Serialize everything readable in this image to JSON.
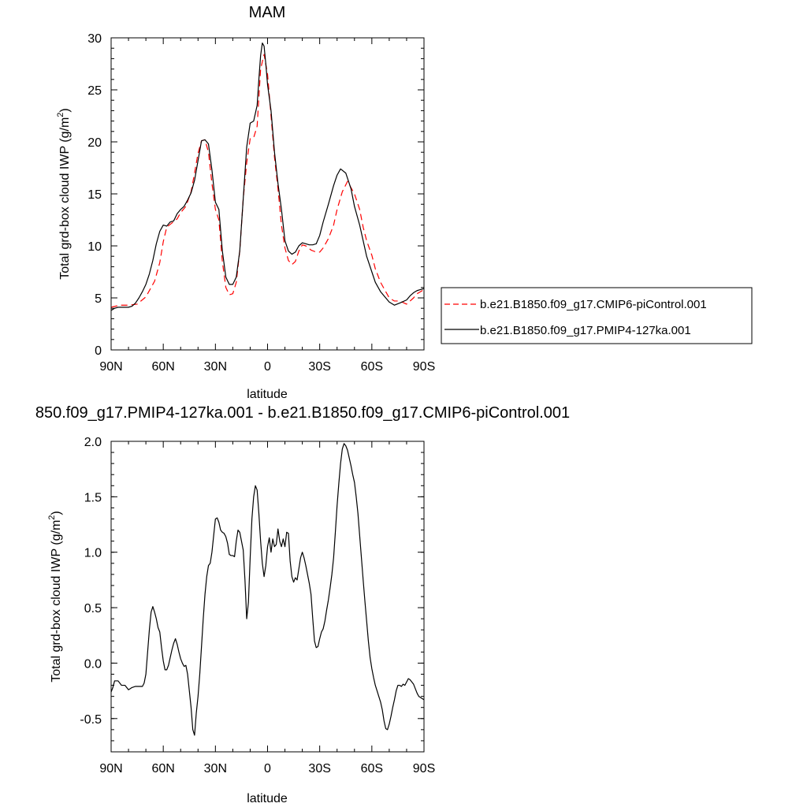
{
  "chart_data": [
    {
      "type": "line",
      "title": "MAM",
      "xlabel": "latitude",
      "ylabel": "Total grd-box cloud IWP (g/m",
      "ylabel_sup": "2",
      "ylabel_close": ")",
      "xlim": [
        90,
        -90
      ],
      "ylim": [
        0,
        30
      ],
      "x_ticks": [
        90,
        60,
        30,
        0,
        -30,
        -60,
        -90
      ],
      "x_tick_labels": [
        "90N",
        "60N",
        "30N",
        "0",
        "30S",
        "60S",
        "90S"
      ],
      "y_ticks": [
        0,
        5,
        10,
        15,
        20,
        25,
        30
      ],
      "y_tick_labels": [
        "0",
        "5",
        "10",
        "15",
        "20",
        "25",
        "30"
      ],
      "legend_position": "right",
      "series": [
        {
          "name": "b.e21.B1850.f09_g17.CMIP6-piControl.001",
          "color": "#ff0000",
          "dash": "dashed",
          "x": [
            90,
            85,
            80,
            75,
            70,
            65,
            62,
            60,
            58,
            55,
            52,
            50,
            47,
            44,
            42,
            40,
            38,
            36,
            34,
            32,
            30,
            28,
            26,
            24,
            22,
            20,
            18,
            16,
            14,
            12,
            10,
            8,
            6,
            4,
            2,
            0,
            -2,
            -4,
            -6,
            -8,
            -10,
            -12,
            -14,
            -16,
            -18,
            -20,
            -22,
            -25,
            -28,
            -30,
            -32,
            -35,
            -38,
            -40,
            -43,
            -46,
            -50,
            -53,
            -55,
            -57,
            -60,
            -62,
            -65,
            -68,
            -70,
            -73,
            -76,
            -80,
            -82,
            -84,
            -86,
            -88,
            -90
          ],
          "y": [
            4.1,
            4.3,
            4.3,
            4.4,
            5.1,
            6.6,
            8.4,
            10.4,
            11.8,
            12.2,
            12.6,
            13.2,
            13.8,
            15.2,
            17.0,
            18.9,
            20.1,
            20.2,
            19.0,
            16.0,
            13.5,
            12.5,
            8.5,
            6.0,
            5.3,
            5.4,
            6.5,
            9.5,
            14.5,
            18.0,
            20.3,
            20.4,
            21.5,
            27.0,
            28.4,
            26.5,
            22.5,
            18.5,
            15.5,
            12.0,
            9.8,
            8.6,
            8.2,
            8.5,
            9.5,
            10.1,
            10.0,
            9.6,
            9.4,
            9.4,
            9.8,
            10.7,
            12.0,
            13.5,
            15.2,
            16.2,
            15.0,
            13.5,
            11.8,
            10.5,
            9.1,
            7.8,
            6.5,
            5.6,
            5.0,
            4.7,
            4.7,
            4.4,
            4.7,
            5.0,
            5.4,
            5.6,
            5.8
          ]
        },
        {
          "name": "b.e21.B1850.f09_g17.PMIP4-127ka.001",
          "color": "#000000",
          "dash": "solid",
          "x": [
            90,
            88,
            86,
            84,
            82,
            80,
            78,
            76,
            74,
            72,
            70,
            68,
            66,
            64,
            62,
            60,
            58,
            56,
            54,
            52,
            50,
            48,
            46,
            44,
            42,
            40,
            38,
            36,
            34,
            32,
            30,
            28,
            26,
            24,
            22,
            20,
            18,
            16,
            14,
            12,
            10,
            8,
            6,
            5,
            4,
            3,
            2,
            1,
            0,
            -2,
            -4,
            -6,
            -8,
            -10,
            -12,
            -14,
            -16,
            -18,
            -20,
            -22,
            -24,
            -26,
            -28,
            -30,
            -32,
            -35,
            -38,
            -40,
            -42,
            -45,
            -48,
            -50,
            -53,
            -55,
            -57,
            -60,
            -62,
            -65,
            -68,
            -70,
            -73,
            -76,
            -80,
            -82,
            -84,
            -86,
            -88,
            -90
          ],
          "y": [
            3.8,
            4.0,
            4.1,
            4.1,
            4.1,
            4.1,
            4.2,
            4.5,
            5.0,
            5.6,
            6.3,
            7.3,
            8.6,
            10.2,
            11.4,
            12.0,
            11.9,
            12.3,
            12.4,
            13.1,
            13.5,
            13.8,
            14.4,
            15.1,
            16.3,
            18.2,
            20.1,
            20.2,
            19.8,
            17.3,
            14.2,
            13.5,
            9.5,
            7.0,
            6.3,
            6.3,
            7.0,
            9.5,
            14.5,
            19.5,
            21.8,
            22.0,
            23.5,
            26.0,
            28.3,
            29.5,
            29.2,
            27.5,
            25.5,
            23.0,
            19.0,
            16.0,
            13.5,
            10.5,
            9.5,
            9.2,
            9.4,
            10.0,
            10.3,
            10.2,
            10.1,
            10.1,
            10.2,
            11.0,
            12.3,
            14.0,
            15.8,
            16.8,
            17.4,
            17.0,
            15.5,
            13.8,
            12.0,
            10.5,
            9.0,
            7.5,
            6.5,
            5.6,
            5.0,
            4.6,
            4.3,
            4.5,
            4.8,
            5.2,
            5.5,
            5.7,
            5.8,
            5.9
          ]
        }
      ]
    },
    {
      "type": "line",
      "title": "850.f09_g17.PMIP4-127ka.001 - b.e21.B1850.f09_g17.CMIP6-piControl.001",
      "xlabel": "latitude",
      "ylabel": "Total grd-box cloud IWP (g/m",
      "ylabel_sup": "2",
      "ylabel_close": ")",
      "xlim": [
        90,
        -90
      ],
      "ylim": [
        -0.8,
        2.0
      ],
      "x_ticks": [
        90,
        60,
        30,
        0,
        -30,
        -60,
        -90
      ],
      "x_tick_labels": [
        "90N",
        "60N",
        "30N",
        "0",
        "30S",
        "60S",
        "90S"
      ],
      "y_ticks": [
        -0.5,
        0.0,
        0.5,
        1.0,
        1.5,
        2.0
      ],
      "y_tick_labels": [
        "-0.5",
        "0.0",
        "0.5",
        "1.0",
        "1.5",
        "2.0"
      ],
      "series": [
        {
          "color": "#000000",
          "dash": "solid",
          "x": [
            90,
            89,
            88,
            86,
            84,
            82,
            80,
            78,
            76,
            74,
            72,
            71,
            70,
            69,
            68,
            67,
            66,
            65,
            64,
            63,
            62,
            61,
            60,
            59,
            58,
            57,
            56,
            55,
            54,
            53,
            52,
            51,
            50,
            49,
            48,
            47,
            46,
            45,
            44,
            43,
            42,
            41,
            40,
            39,
            38,
            37,
            36,
            35,
            34,
            33,
            32,
            31,
            30,
            29,
            28,
            27,
            26,
            25,
            24,
            23,
            22,
            21,
            20,
            19,
            18,
            17,
            16,
            15,
            14,
            13,
            12,
            11,
            10,
            9,
            8,
            7,
            6,
            5,
            4,
            3,
            2,
            1,
            0,
            -1,
            -2,
            -3,
            -4,
            -5,
            -6,
            -7,
            -8,
            -9,
            -10,
            -11,
            -12,
            -13,
            -14,
            -15,
            -16,
            -17,
            -18,
            -19,
            -20,
            -21,
            -22,
            -23,
            -24,
            -25,
            -26,
            -27,
            -28,
            -29,
            -30,
            -31,
            -32,
            -33,
            -34,
            -35,
            -36,
            -37,
            -38,
            -39,
            -40,
            -41,
            -42,
            -43,
            -44,
            -45,
            -46,
            -47,
            -48,
            -49,
            -50,
            -51,
            -52,
            -53,
            -54,
            -55,
            -56,
            -57,
            -58,
            -59,
            -60,
            -61,
            -62,
            -63,
            -64,
            -65,
            -66,
            -67,
            -68,
            -69,
            -70,
            -71,
            -72,
            -73,
            -74,
            -75,
            -76,
            -77,
            -78,
            -79,
            -80,
            -81,
            -82,
            -83,
            -84,
            -85,
            -86,
            -87,
            -88,
            -89,
            -90
          ],
          "y": [
            -0.26,
            -0.22,
            -0.16,
            -0.16,
            -0.2,
            -0.2,
            -0.24,
            -0.22,
            -0.21,
            -0.21,
            -0.21,
            -0.18,
            -0.1,
            0.1,
            0.3,
            0.46,
            0.51,
            0.46,
            0.4,
            0.32,
            0.28,
            0.14,
            0.02,
            -0.06,
            -0.06,
            -0.02,
            0.05,
            0.12,
            0.18,
            0.22,
            0.17,
            0.1,
            0.04,
            0.0,
            -0.03,
            -0.02,
            -0.1,
            -0.25,
            -0.4,
            -0.6,
            -0.65,
            -0.45,
            -0.3,
            -0.1,
            0.15,
            0.4,
            0.62,
            0.78,
            0.88,
            0.9,
            1.0,
            1.15,
            1.3,
            1.31,
            1.27,
            1.2,
            1.18,
            1.17,
            1.14,
            1.08,
            0.98,
            0.97,
            0.97,
            0.96,
            1.1,
            1.2,
            1.18,
            1.1,
            1.02,
            0.75,
            0.4,
            0.55,
            0.95,
            1.3,
            1.5,
            1.6,
            1.56,
            1.35,
            1.1,
            0.9,
            0.78,
            0.88,
            1.05,
            1.13,
            1.0,
            1.12,
            1.05,
            1.07,
            1.21,
            1.1,
            1.05,
            1.12,
            1.05,
            1.18,
            1.17,
            0.92,
            0.78,
            0.73,
            0.77,
            0.75,
            0.85,
            0.95,
            1.0,
            0.95,
            0.88,
            0.8,
            0.72,
            0.62,
            0.4,
            0.2,
            0.14,
            0.15,
            0.22,
            0.28,
            0.31,
            0.38,
            0.48,
            0.57,
            0.68,
            0.8,
            0.95,
            1.18,
            1.42,
            1.62,
            1.8,
            1.93,
            1.98,
            1.96,
            1.92,
            1.85,
            1.78,
            1.7,
            1.63,
            1.5,
            1.35,
            1.15,
            0.95,
            0.75,
            0.56,
            0.38,
            0.2,
            0.05,
            -0.05,
            -0.13,
            -0.2,
            -0.25,
            -0.3,
            -0.35,
            -0.42,
            -0.52,
            -0.59,
            -0.6,
            -0.55,
            -0.48,
            -0.4,
            -0.33,
            -0.25,
            -0.2,
            -0.2,
            -0.21,
            -0.19,
            -0.2,
            -0.17,
            -0.14,
            -0.15,
            -0.17,
            -0.19,
            -0.23,
            -0.27,
            -0.3,
            -0.31,
            -0.32,
            -0.33
          ]
        }
      ]
    }
  ]
}
